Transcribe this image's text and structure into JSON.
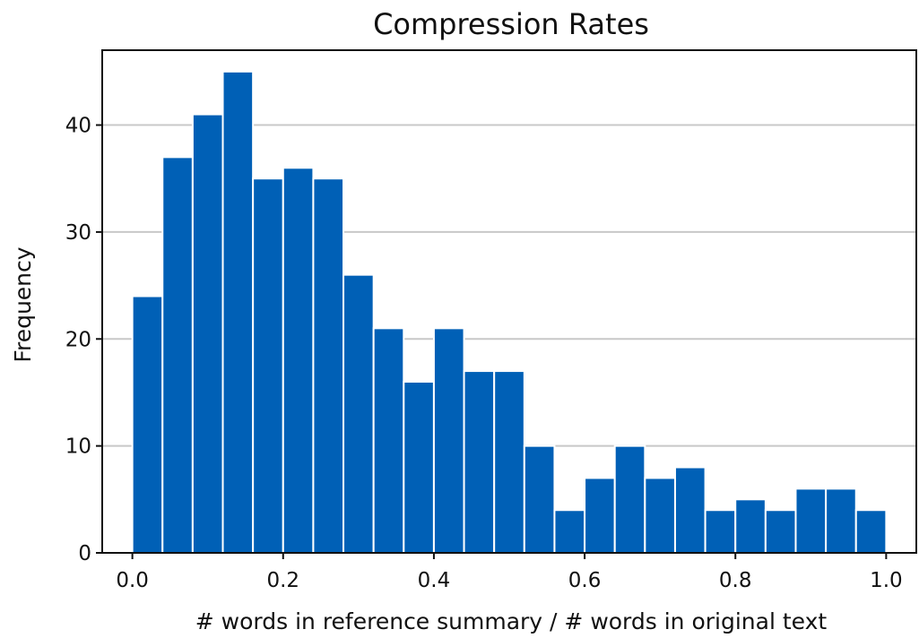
{
  "chart_data": {
    "type": "bar",
    "subtype": "histogram",
    "title": "Compression Rates",
    "xlabel": "# words in reference summary / # words in original text",
    "ylabel": "Frequency",
    "xlim": [
      -0.04,
      1.04
    ],
    "ylim": [
      0,
      47
    ],
    "xticks": [
      0.0,
      0.2,
      0.4,
      0.6,
      0.8,
      1.0
    ],
    "xtick_labels": [
      "0.0",
      "0.2",
      "0.4",
      "0.6",
      "0.8",
      "1.0"
    ],
    "yticks": [
      0,
      10,
      20,
      30,
      40
    ],
    "ytick_labels": [
      "0",
      "10",
      "20",
      "30",
      "40"
    ],
    "grid": "y-axis",
    "bar_color": "#0060b6",
    "bins": [
      {
        "start": 0.0,
        "end": 0.04,
        "value": 24
      },
      {
        "start": 0.04,
        "end": 0.08,
        "value": 37
      },
      {
        "start": 0.08,
        "end": 0.12,
        "value": 41
      },
      {
        "start": 0.12,
        "end": 0.16,
        "value": 45
      },
      {
        "start": 0.16,
        "end": 0.2,
        "value": 35
      },
      {
        "start": 0.2,
        "end": 0.24,
        "value": 36
      },
      {
        "start": 0.24,
        "end": 0.28,
        "value": 35
      },
      {
        "start": 0.28,
        "end": 0.32,
        "value": 26
      },
      {
        "start": 0.32,
        "end": 0.36,
        "value": 21
      },
      {
        "start": 0.36,
        "end": 0.4,
        "value": 16
      },
      {
        "start": 0.4,
        "end": 0.44,
        "value": 21
      },
      {
        "start": 0.44,
        "end": 0.48,
        "value": 17
      },
      {
        "start": 0.48,
        "end": 0.52,
        "value": 17
      },
      {
        "start": 0.52,
        "end": 0.56,
        "value": 10
      },
      {
        "start": 0.56,
        "end": 0.6,
        "value": 4
      },
      {
        "start": 0.6,
        "end": 0.64,
        "value": 7
      },
      {
        "start": 0.64,
        "end": 0.68,
        "value": 10
      },
      {
        "start": 0.68,
        "end": 0.72,
        "value": 7
      },
      {
        "start": 0.72,
        "end": 0.76,
        "value": 8
      },
      {
        "start": 0.76,
        "end": 0.8,
        "value": 4
      },
      {
        "start": 0.8,
        "end": 0.84,
        "value": 5
      },
      {
        "start": 0.84,
        "end": 0.88,
        "value": 4
      },
      {
        "start": 0.88,
        "end": 0.92,
        "value": 6
      },
      {
        "start": 0.92,
        "end": 0.96,
        "value": 6
      },
      {
        "start": 0.96,
        "end": 1.0,
        "value": 4
      }
    ]
  }
}
